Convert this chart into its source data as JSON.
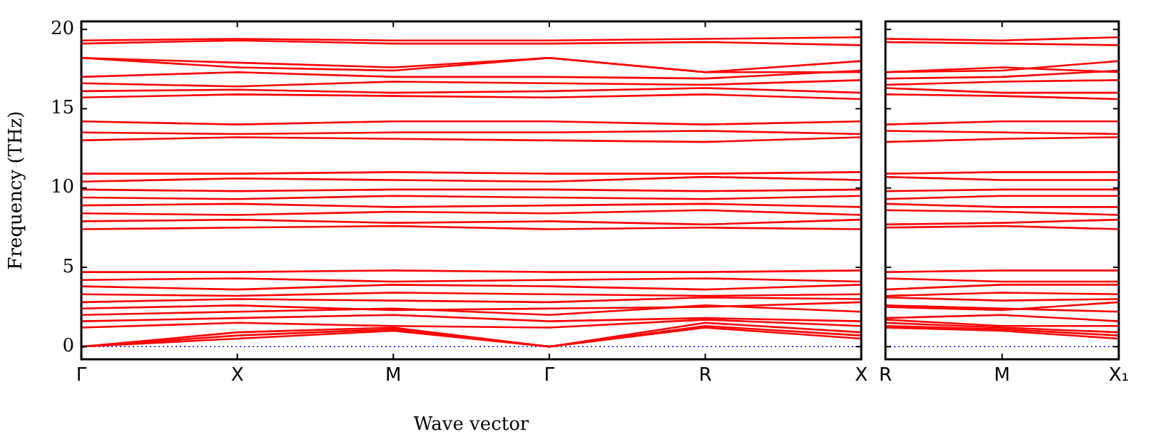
{
  "chart_data": [
    {
      "type": "line",
      "xlabel": "Wave vector",
      "ylabel": "Frequency (THz)",
      "categories": [
        "Γ",
        "X",
        "M",
        "Γ",
        "R",
        "X"
      ],
      "ylim": [
        -0.8,
        20.5
      ],
      "yticks": [
        0,
        5,
        10,
        15,
        20
      ],
      "grid": false,
      "legend": false,
      "marker": "none",
      "line_style": "solid",
      "ref_lines": [
        {
          "axis": "y",
          "value": 0,
          "color": "#0000ff",
          "line_style": "dotted"
        }
      ],
      "series": [
        {
          "color": "#ff0000",
          "values": [
            0,
            0.5,
            1.0,
            0,
            1.2,
            0.5
          ]
        },
        {
          "color": "#ff0000",
          "values": [
            0,
            0.7,
            1.1,
            0,
            1.3,
            0.7
          ]
        },
        {
          "color": "#ff0000",
          "values": [
            0,
            0.9,
            1.2,
            0,
            1.5,
            0.9
          ]
        },
        {
          "color": "#ff0000",
          "values": [
            1.2,
            1.5,
            1.3,
            1.2,
            1.7,
            1.3
          ]
        },
        {
          "color": "#ff0000",
          "values": [
            1.6,
            1.8,
            2.0,
            1.6,
            1.8,
            1.6
          ]
        },
        {
          "color": "#ff0000",
          "values": [
            2.0,
            2.2,
            2.4,
            2.0,
            2.6,
            2.2
          ]
        },
        {
          "color": "#ff0000",
          "values": [
            2.4,
            2.6,
            2.3,
            2.4,
            2.5,
            2.8
          ]
        },
        {
          "color": "#ff0000",
          "values": [
            2.8,
            3.0,
            2.9,
            2.8,
            3.1,
            3.0
          ]
        },
        {
          "color": "#ff0000",
          "values": [
            3.3,
            3.2,
            3.4,
            3.3,
            3.2,
            3.3
          ]
        },
        {
          "color": "#ff0000",
          "values": [
            3.8,
            3.6,
            3.9,
            3.8,
            3.6,
            3.9
          ]
        },
        {
          "color": "#ff0000",
          "values": [
            4.2,
            4.3,
            4.1,
            4.2,
            4.3,
            4.1
          ]
        },
        {
          "color": "#ff0000",
          "values": [
            4.7,
            4.7,
            4.8,
            4.7,
            4.7,
            4.8
          ]
        },
        {
          "color": "#ff0000",
          "values": [
            7.4,
            7.5,
            7.6,
            7.4,
            7.5,
            7.4
          ]
        },
        {
          "color": "#ff0000",
          "values": [
            7.9,
            8.0,
            7.8,
            7.9,
            7.7,
            8.0
          ]
        },
        {
          "color": "#ff0000",
          "values": [
            8.4,
            8.3,
            8.5,
            8.4,
            8.6,
            8.3
          ]
        },
        {
          "color": "#ff0000",
          "values": [
            8.9,
            9.0,
            8.8,
            8.9,
            9.0,
            8.8
          ]
        },
        {
          "color": "#ff0000",
          "values": [
            9.4,
            9.3,
            9.5,
            9.4,
            9.3,
            9.5
          ]
        },
        {
          "color": "#ff0000",
          "values": [
            9.9,
            9.8,
            9.9,
            9.9,
            9.8,
            9.9
          ]
        },
        {
          "color": "#ff0000",
          "values": [
            10.4,
            10.6,
            10.5,
            10.4,
            10.7,
            10.5
          ]
        },
        {
          "color": "#ff0000",
          "values": [
            10.9,
            10.9,
            11.0,
            10.9,
            10.9,
            11.0
          ]
        },
        {
          "color": "#ff0000",
          "values": [
            13.0,
            13.2,
            13.1,
            13.0,
            12.9,
            13.2
          ]
        },
        {
          "color": "#ff0000",
          "values": [
            13.5,
            13.4,
            13.5,
            13.5,
            13.6,
            13.4
          ]
        },
        {
          "color": "#ff0000",
          "values": [
            14.2,
            14.0,
            14.2,
            14.2,
            14.0,
            14.2
          ]
        },
        {
          "color": "#ff0000",
          "values": [
            15.7,
            15.9,
            15.8,
            15.7,
            15.9,
            15.6
          ]
        },
        {
          "color": "#ff0000",
          "values": [
            16.1,
            16.2,
            16.0,
            16.1,
            16.3,
            16.0
          ]
        },
        {
          "color": "#ff0000",
          "values": [
            16.6,
            16.4,
            16.7,
            16.6,
            16.5,
            16.8
          ]
        },
        {
          "color": "#ff0000",
          "values": [
            17.0,
            17.3,
            17.0,
            17.0,
            16.9,
            17.4
          ]
        },
        {
          "color": "#ff0000",
          "values": [
            18.2,
            17.6,
            17.4,
            18.2,
            17.3,
            18.0
          ]
        },
        {
          "color": "#ff0000",
          "values": [
            18.2,
            17.9,
            17.6,
            18.2,
            17.3,
            17.3
          ]
        },
        {
          "color": "#ff0000",
          "values": [
            19.1,
            19.3,
            19.1,
            19.1,
            19.2,
            19.0
          ]
        },
        {
          "color": "#ff0000",
          "values": [
            19.3,
            19.4,
            19.3,
            19.3,
            19.4,
            19.5
          ]
        }
      ]
    },
    {
      "type": "line",
      "categories": [
        "R",
        "M",
        "X₁"
      ],
      "ylim": [
        -0.8,
        20.5
      ],
      "yticks": [
        0,
        5,
        10,
        15,
        20
      ],
      "tick_labels": "x",
      "grid": false,
      "legend": false,
      "marker": "none",
      "line_style": "solid",
      "ref_lines": [
        {
          "axis": "y",
          "value": 0,
          "color": "#0000ff",
          "line_style": "dotted"
        }
      ],
      "series": [
        {
          "color": "#ff0000",
          "values": [
            1.2,
            1.0,
            0.5
          ]
        },
        {
          "color": "#ff0000",
          "values": [
            1.3,
            1.1,
            0.7
          ]
        },
        {
          "color": "#ff0000",
          "values": [
            1.5,
            1.2,
            0.9
          ]
        },
        {
          "color": "#ff0000",
          "values": [
            1.7,
            1.3,
            1.3
          ]
        },
        {
          "color": "#ff0000",
          "values": [
            1.8,
            2.0,
            1.6
          ]
        },
        {
          "color": "#ff0000",
          "values": [
            2.6,
            2.4,
            2.2
          ]
        },
        {
          "color": "#ff0000",
          "values": [
            2.5,
            2.3,
            2.8
          ]
        },
        {
          "color": "#ff0000",
          "values": [
            3.1,
            2.9,
            3.0
          ]
        },
        {
          "color": "#ff0000",
          "values": [
            3.2,
            3.4,
            3.3
          ]
        },
        {
          "color": "#ff0000",
          "values": [
            3.6,
            3.9,
            3.9
          ]
        },
        {
          "color": "#ff0000",
          "values": [
            4.3,
            4.1,
            4.1
          ]
        },
        {
          "color": "#ff0000",
          "values": [
            4.7,
            4.8,
            4.8
          ]
        },
        {
          "color": "#ff0000",
          "values": [
            7.5,
            7.6,
            7.4
          ]
        },
        {
          "color": "#ff0000",
          "values": [
            7.7,
            7.8,
            8.0
          ]
        },
        {
          "color": "#ff0000",
          "values": [
            8.6,
            8.5,
            8.3
          ]
        },
        {
          "color": "#ff0000",
          "values": [
            9.0,
            8.8,
            8.8
          ]
        },
        {
          "color": "#ff0000",
          "values": [
            9.3,
            9.5,
            9.5
          ]
        },
        {
          "color": "#ff0000",
          "values": [
            9.8,
            9.9,
            9.9
          ]
        },
        {
          "color": "#ff0000",
          "values": [
            10.7,
            10.5,
            10.5
          ]
        },
        {
          "color": "#ff0000",
          "values": [
            10.9,
            11.0,
            11.0
          ]
        },
        {
          "color": "#ff0000",
          "values": [
            12.9,
            13.1,
            13.2
          ]
        },
        {
          "color": "#ff0000",
          "values": [
            13.6,
            13.5,
            13.4
          ]
        },
        {
          "color": "#ff0000",
          "values": [
            14.0,
            14.2,
            14.2
          ]
        },
        {
          "color": "#ff0000",
          "values": [
            15.9,
            15.8,
            15.6
          ]
        },
        {
          "color": "#ff0000",
          "values": [
            16.3,
            16.0,
            16.0
          ]
        },
        {
          "color": "#ff0000",
          "values": [
            16.5,
            16.7,
            16.8
          ]
        },
        {
          "color": "#ff0000",
          "values": [
            16.9,
            17.0,
            17.4
          ]
        },
        {
          "color": "#ff0000",
          "values": [
            17.3,
            17.4,
            18.0
          ]
        },
        {
          "color": "#ff0000",
          "values": [
            17.3,
            17.6,
            17.3
          ]
        },
        {
          "color": "#ff0000",
          "values": [
            19.2,
            19.1,
            19.0
          ]
        },
        {
          "color": "#ff0000",
          "values": [
            19.4,
            19.3,
            19.5
          ]
        }
      ]
    }
  ]
}
